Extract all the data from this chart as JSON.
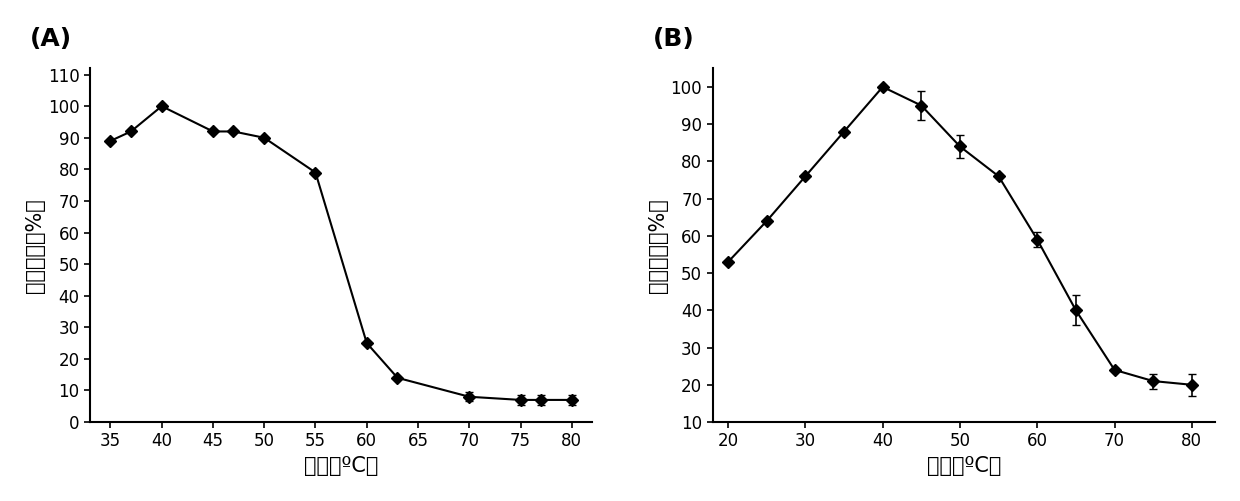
{
  "A": {
    "label": "(A)",
    "x": [
      35,
      37,
      40,
      45,
      47,
      50,
      55,
      60,
      63,
      70,
      75,
      77,
      80
    ],
    "y": [
      89,
      92,
      100,
      92,
      92,
      90,
      79,
      25,
      14,
      8,
      7,
      7,
      7
    ],
    "yerr": [
      0,
      0,
      0,
      0,
      0,
      0,
      0,
      0,
      0,
      1.5,
      1.5,
      1.5,
      1.5
    ],
    "xlim": [
      33,
      82
    ],
    "ylim": [
      0,
      112
    ],
    "xticks": [
      35,
      40,
      45,
      50,
      55,
      60,
      65,
      70,
      75,
      80
    ],
    "yticks": [
      0,
      10,
      20,
      30,
      40,
      50,
      60,
      70,
      80,
      90,
      100,
      110
    ],
    "xlabel": "温度（ºC）",
    "ylabel": "相对酶活（%）"
  },
  "B": {
    "label": "(B)",
    "x": [
      20,
      25,
      30,
      35,
      40,
      45,
      50,
      55,
      60,
      65,
      70,
      75,
      80
    ],
    "y": [
      53,
      64,
      76,
      88,
      100,
      95,
      84,
      76,
      59,
      40,
      24,
      21,
      20
    ],
    "yerr": [
      0,
      0,
      0,
      0,
      0,
      4,
      3,
      0,
      2,
      4,
      0,
      2,
      3
    ],
    "xlim": [
      18,
      83
    ],
    "ylim": [
      10,
      105
    ],
    "xticks": [
      20,
      30,
      40,
      50,
      60,
      70,
      80
    ],
    "yticks": [
      10,
      20,
      30,
      40,
      50,
      60,
      70,
      80,
      90,
      100
    ],
    "xlabel": "温度（ºC）",
    "ylabel": "相对酶活（%）"
  },
  "marker": "D",
  "markersize": 6,
  "linewidth": 1.5,
  "color": "black",
  "capsize": 3,
  "elinewidth": 1.2,
  "label_fontsize": 18,
  "axis_label_fontsize": 15,
  "tick_fontsize": 12
}
